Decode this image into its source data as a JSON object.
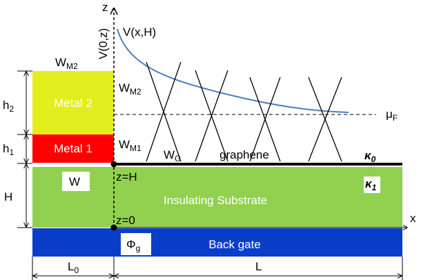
{
  "axes": {
    "z": "z",
    "x": "x",
    "v0z": "V(0,z)",
    "vxh": "V(x,H)",
    "z_h": "z=H",
    "z_0": "z=0"
  },
  "work_functions": {
    "wm2_top": {
      "base": "W",
      "sub": "M2"
    },
    "wm2_axis": {
      "base": "W",
      "sub": "M2"
    },
    "wm1": {
      "base": "W",
      "sub": "M1"
    },
    "wg": {
      "base": "W",
      "sub": "G"
    },
    "w": "W",
    "phi_g": {
      "base": "Φ",
      "sub": "g"
    }
  },
  "layers": {
    "metal2": "Metal 2",
    "metal1": "Metal 1",
    "graphene": "graphene",
    "substrate": "Insulating  Substrate",
    "back_gate": "Back gate"
  },
  "permittivities": {
    "kappa0": {
      "base": "κ",
      "sub": "0"
    },
    "kappa1": {
      "base": "κ",
      "sub": "1"
    }
  },
  "fermi_level": {
    "base": "μ",
    "sub": "F"
  },
  "dimensions": {
    "h2": {
      "base": "h",
      "sub": "2"
    },
    "h1": {
      "base": "h",
      "sub": "1"
    },
    "H": "H",
    "L0": {
      "base": "L",
      "sub": "0"
    },
    "L": "L"
  }
}
